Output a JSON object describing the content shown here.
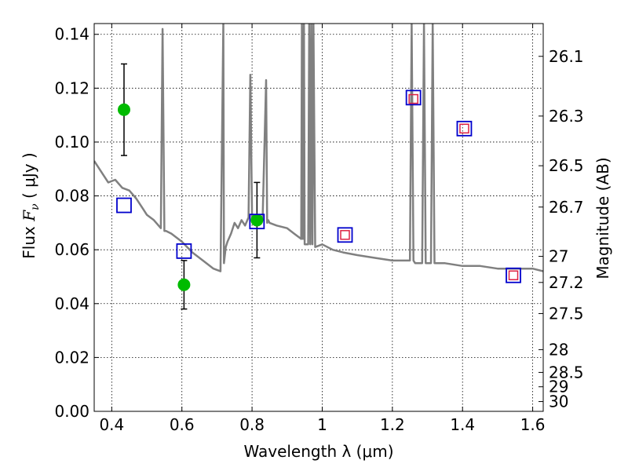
{
  "chart_data": {
    "type": "scatter",
    "xlabel": "Wavelength  λ (μm)",
    "ylabel_prefix": "Flux  ",
    "ylabel_symbol": "F",
    "ylabel_sub": "ν",
    "ylabel_suffix": "  (  μJy )",
    "y2label": "Magnitude (AB)",
    "xlim": [
      0.35,
      1.63
    ],
    "ylim": [
      0.0,
      0.144
    ],
    "grid": true,
    "xticks": [
      {
        "v": 0.4,
        "label": "0.4"
      },
      {
        "v": 0.6,
        "label": "0.6"
      },
      {
        "v": 0.8,
        "label": "0.8"
      },
      {
        "v": 1.0,
        "label": "1"
      },
      {
        "v": 1.2,
        "label": "1.2"
      },
      {
        "v": 1.4,
        "label": "1.4"
      },
      {
        "v": 1.6,
        "label": "1.6"
      }
    ],
    "yticks": [
      {
        "v": 0.0,
        "label": "0.00"
      },
      {
        "v": 0.02,
        "label": "0.02"
      },
      {
        "v": 0.04,
        "label": "0.04"
      },
      {
        "v": 0.06,
        "label": "0.06"
      },
      {
        "v": 0.08,
        "label": "0.08"
      },
      {
        "v": 0.1,
        "label": "0.10"
      },
      {
        "v": 0.12,
        "label": "0.12"
      },
      {
        "v": 0.14,
        "label": "0.14"
      }
    ],
    "mag_ticks": [
      {
        "mag": 26.1,
        "label": "26.1"
      },
      {
        "mag": 26.3,
        "label": "26.3"
      },
      {
        "mag": 26.5,
        "label": "26.5"
      },
      {
        "mag": 26.7,
        "label": "26.7"
      },
      {
        "mag": 27.0,
        "label": "27"
      },
      {
        "mag": 27.2,
        "label": "27.2"
      },
      {
        "mag": 27.5,
        "label": "27.5"
      },
      {
        "mag": 28.0,
        "label": "28"
      },
      {
        "mag": 28.5,
        "label": "28.5"
      },
      {
        "mag": 29.0,
        "label": "29"
      },
      {
        "mag": 30.0,
        "label": "30"
      }
    ],
    "series": [
      {
        "kind": "line",
        "color": "#808080",
        "x": [
          0.35,
          0.37,
          0.39,
          0.41,
          0.43,
          0.45,
          0.47,
          0.49,
          0.5,
          0.52,
          0.54,
          0.545,
          0.55,
          0.555,
          0.57,
          0.6,
          0.63,
          0.66,
          0.69,
          0.71,
          0.718,
          0.72,
          0.725,
          0.73,
          0.74,
          0.75,
          0.76,
          0.77,
          0.78,
          0.79,
          0.795,
          0.8,
          0.805,
          0.81,
          0.82,
          0.83,
          0.84,
          0.843,
          0.846,
          0.85,
          0.87,
          0.9,
          0.92,
          0.94,
          0.942,
          0.945,
          0.948,
          0.95,
          0.96,
          0.963,
          0.966,
          0.969,
          0.972,
          0.975,
          0.98,
          1.0,
          1.03,
          1.06,
          1.1,
          1.15,
          1.2,
          1.25,
          1.255,
          1.26,
          1.265,
          1.27,
          1.285,
          1.29,
          1.295,
          1.31,
          1.315,
          1.32,
          1.35,
          1.4,
          1.45,
          1.5,
          1.55,
          1.6,
          1.63
        ],
        "y": [
          0.093,
          0.089,
          0.085,
          0.086,
          0.083,
          0.082,
          0.079,
          0.075,
          0.073,
          0.071,
          0.068,
          0.142,
          0.067,
          0.067,
          0.066,
          0.063,
          0.059,
          0.056,
          0.053,
          0.052,
          0.144,
          0.055,
          0.061,
          0.063,
          0.066,
          0.07,
          0.068,
          0.071,
          0.069,
          0.072,
          0.125,
          0.072,
          0.07,
          0.073,
          0.071,
          0.071,
          0.123,
          0.07,
          0.071,
          0.07,
          0.069,
          0.068,
          0.066,
          0.064,
          0.144,
          0.064,
          0.144,
          0.062,
          0.062,
          0.144,
          0.062,
          0.144,
          0.062,
          0.144,
          0.061,
          0.062,
          0.06,
          0.059,
          0.058,
          0.057,
          0.056,
          0.056,
          0.144,
          0.056,
          0.055,
          0.055,
          0.055,
          0.144,
          0.055,
          0.055,
          0.144,
          0.055,
          0.055,
          0.054,
          0.054,
          0.053,
          0.053,
          0.053,
          0.052
        ]
      },
      {
        "kind": "errorbar",
        "color": "#00bb00",
        "points": [
          {
            "x": 0.435,
            "y": 0.112,
            "lo": 0.095,
            "hi": 0.129
          },
          {
            "x": 0.606,
            "y": 0.047,
            "lo": 0.038,
            "hi": 0.056
          },
          {
            "x": 0.814,
            "y": 0.071,
            "lo": 0.057,
            "hi": 0.085
          }
        ]
      },
      {
        "kind": "square",
        "color": "#0000cc",
        "points": [
          {
            "x": 0.435,
            "y": 0.0765
          },
          {
            "x": 0.606,
            "y": 0.0595
          },
          {
            "x": 0.814,
            "y": 0.0705
          },
          {
            "x": 1.065,
            "y": 0.0655
          },
          {
            "x": 1.26,
            "y": 0.1165
          },
          {
            "x": 1.405,
            "y": 0.105
          },
          {
            "x": 1.545,
            "y": 0.0505
          }
        ]
      },
      {
        "kind": "square-small",
        "color": "#dd2244",
        "points": [
          {
            "x": 1.065,
            "y": 0.0655
          },
          {
            "x": 1.26,
            "y": 0.116
          },
          {
            "x": 1.405,
            "y": 0.105
          },
          {
            "x": 1.545,
            "y": 0.0505
          }
        ]
      }
    ]
  }
}
